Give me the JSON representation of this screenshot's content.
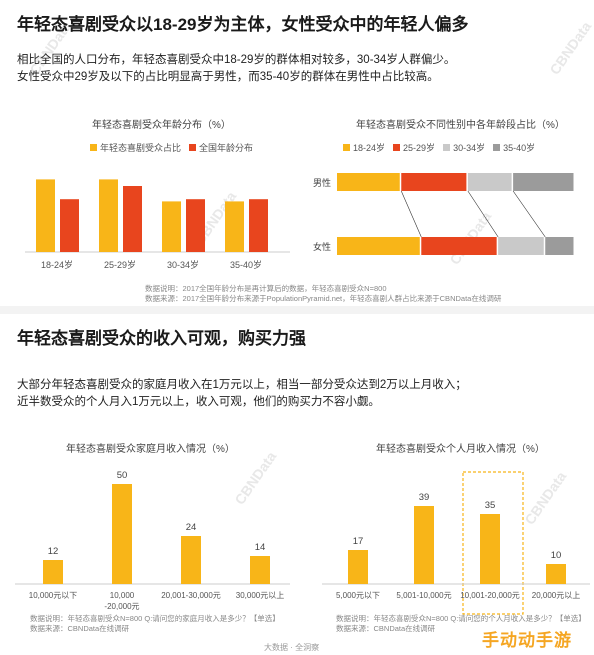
{
  "colors": {
    "young": "#F8B518",
    "national": "#E8451E",
    "s18": "#F8B518",
    "s25": "#E8451E",
    "s30": "#C9C9C9",
    "s35": "#9B9B9B",
    "bar": "#F8B518",
    "highlight_border": "#F8B518"
  },
  "section1": {
    "heading": "年轻态喜剧受众以18-29岁为主体，女性受众中的年轻人偏多",
    "para_line1": "相比全国的人口分布，年轻态喜剧受众中18-29岁的群体相对较多，30-34岁人群偏少。",
    "para_line2": "女性受众中29岁及以下的占比明显高于男性，而35-40岁的群体在男性中占比较高。",
    "note_line1": "数据说明：2017全国年龄分布是再计算后的数据，年轻态喜剧受众N=800",
    "note_line2": "数据来源：2017全国年龄分布来源于PopulationPyramid.net，年轻态喜剧人群占比来源于CBNData在线调研"
  },
  "section2": {
    "heading": "年轻态喜剧受众的收入可观，购买力强",
    "para_line1": "大部分年轻态喜剧受众的家庭月收入在1万元以上，相当一部分受众达到2万以上月收入；",
    "para_line2": "近半数受众的个人月入1万元以上，收入可观，他们的购买力不容小觑。"
  },
  "notes_income": {
    "left_line1": "数据说明：年轻态喜剧受众N=800   Q:请问您的家庭月收入是多少？【单选】",
    "left_line2": "数据来源：CBNData在线调研",
    "right_line1": "数据说明：年轻态喜剧受众N=800   Q:请问您的个人月收入是多少？【单选】",
    "right_line2": "数据来源：CBNData在线调研"
  },
  "footer": "大数据 · 全洞察",
  "watermark": "CBNData",
  "corner_mark": "手动动手游",
  "chart_data": [
    {
      "type": "bar",
      "title": "年轻态喜剧受众年龄分布（%）",
      "categories": [
        "18-24岁",
        "25-29岁",
        "30-34岁",
        "35-40岁"
      ],
      "series": [
        {
          "name": "年轻态喜剧受众占比",
          "values": [
            33,
            33,
            23,
            23
          ]
        },
        {
          "name": "全国年龄分布",
          "values": [
            24,
            30,
            24,
            24
          ]
        }
      ],
      "grid": false,
      "legend": "top"
    },
    {
      "type": "bar",
      "stacked": true,
      "orientation": "horizontal",
      "title": "年轻态喜剧受众不同性别中各年龄段占比（%）",
      "categories": [
        "男性",
        "女性"
      ],
      "series": [
        {
          "name": "18-24岁",
          "values": [
            27,
            34
          ]
        },
        {
          "name": "25-29岁",
          "values": [
            28,
            31
          ]
        },
        {
          "name": "30-34岁",
          "values": [
            19,
            19
          ]
        },
        {
          "name": "35-40岁",
          "values": [
            26,
            12
          ]
        }
      ],
      "legend": "top"
    },
    {
      "type": "bar",
      "title": "年轻态喜剧受众家庭月收入情况（%）",
      "categories": [
        "10,000元以下",
        "10,000\n-20,000元",
        "20,001-30,000元",
        "30,000元以上"
      ],
      "values": [
        12,
        50,
        24,
        14
      ]
    },
    {
      "type": "bar",
      "title": "年轻态喜剧受众个人月收入情况（%）",
      "categories": [
        "5,000元以下",
        "5,001-10,000元",
        "10,001-20,000元",
        "20,000元以上"
      ],
      "values": [
        17,
        39,
        35,
        10
      ],
      "highlight_index": 2
    }
  ]
}
